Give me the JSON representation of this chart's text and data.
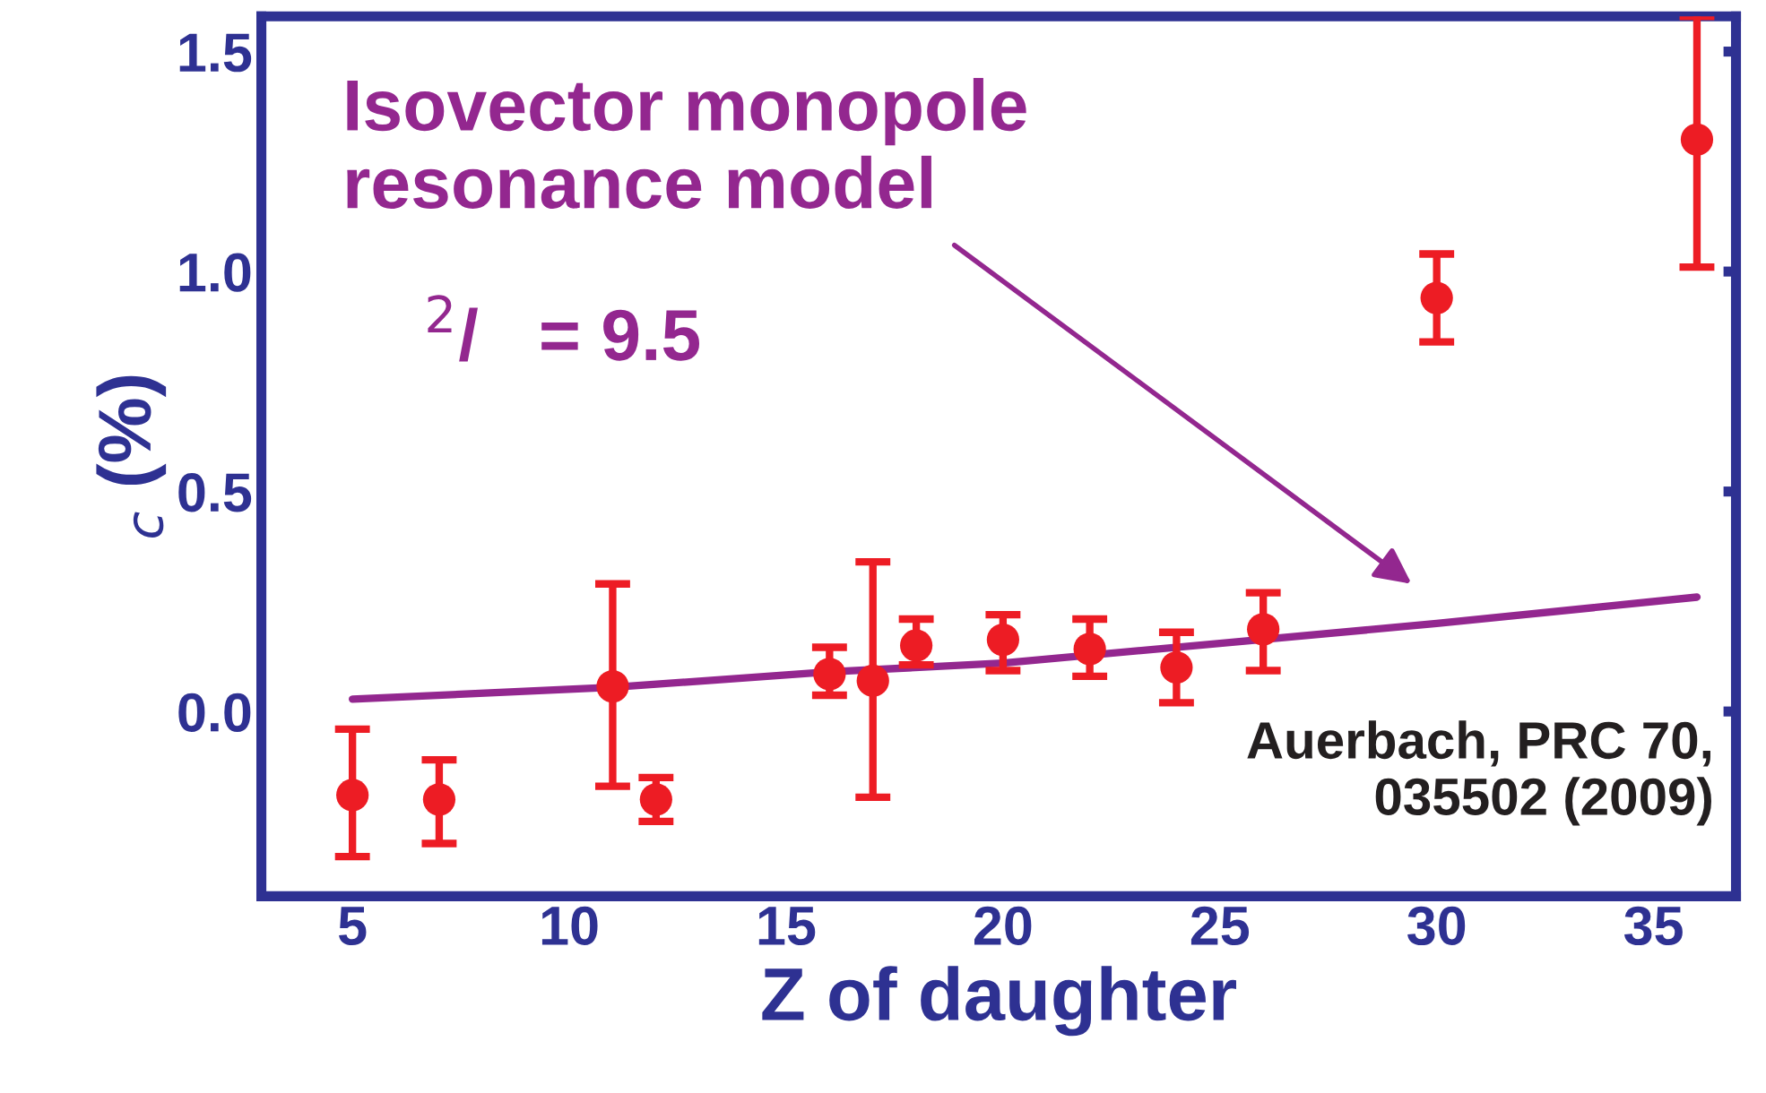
{
  "chart_data": {
    "type": "scatter",
    "xlabel": "Z of daughter",
    "ylabel": "$_{c}$ (%)",
    "xlim": [
      2.9,
      36.9
    ],
    "ylim": [
      -0.42,
      1.58
    ],
    "xticks": [
      5,
      10,
      15,
      20,
      25,
      30,
      35
    ],
    "yticks": [
      {
        "value": 0,
        "label": "0.0"
      },
      0.5,
      {
        "value": 1,
        "label": "1.0"
      },
      1.5
    ],
    "grid": false,
    "legend": false,
    "series": [
      {
        "color": "#ed1c24",
        "marker": "circle",
        "x": [
          5,
          7,
          11,
          12,
          16,
          17,
          18,
          20,
          22,
          24,
          26,
          30,
          36
        ],
        "values": [
          -0.19,
          -0.2,
          0.057,
          -0.2,
          0.085,
          0.07,
          0.15,
          0.163,
          0.142,
          0.1,
          0.187,
          0.94,
          1.3
        ],
        "errors": [
          [
            -0.33,
            -0.04
          ],
          [
            -0.3,
            -0.11
          ],
          [
            -0.17,
            0.29
          ],
          [
            -0.25,
            -0.15
          ],
          [
            0.037,
            0.146
          ],
          [
            -0.195,
            0.34
          ],
          [
            0.106,
            0.21
          ],
          [
            0.093,
            0.22
          ],
          [
            0.08,
            0.21
          ],
          [
            0.02,
            0.18
          ],
          [
            0.093,
            0.27
          ],
          [
            0.84,
            1.04
          ],
          [
            1.01,
            1.58
          ]
        ]
      },
      {
        "type": "line",
        "color": "#93278f",
        "line_style": "solid",
        "x": [
          5,
          11,
          16,
          20,
          25,
          30,
          36
        ],
        "values": [
          0.028,
          0.055,
          0.09,
          0.11,
          0.155,
          0.2,
          0.26
        ]
      }
    ],
    "annotations": [
      "Isovector monopole\nresonance model",
      "$^{2}$/   = 9.5",
      "Auerbach, PRC 70,\n035502 (2009)"
    ]
  }
}
